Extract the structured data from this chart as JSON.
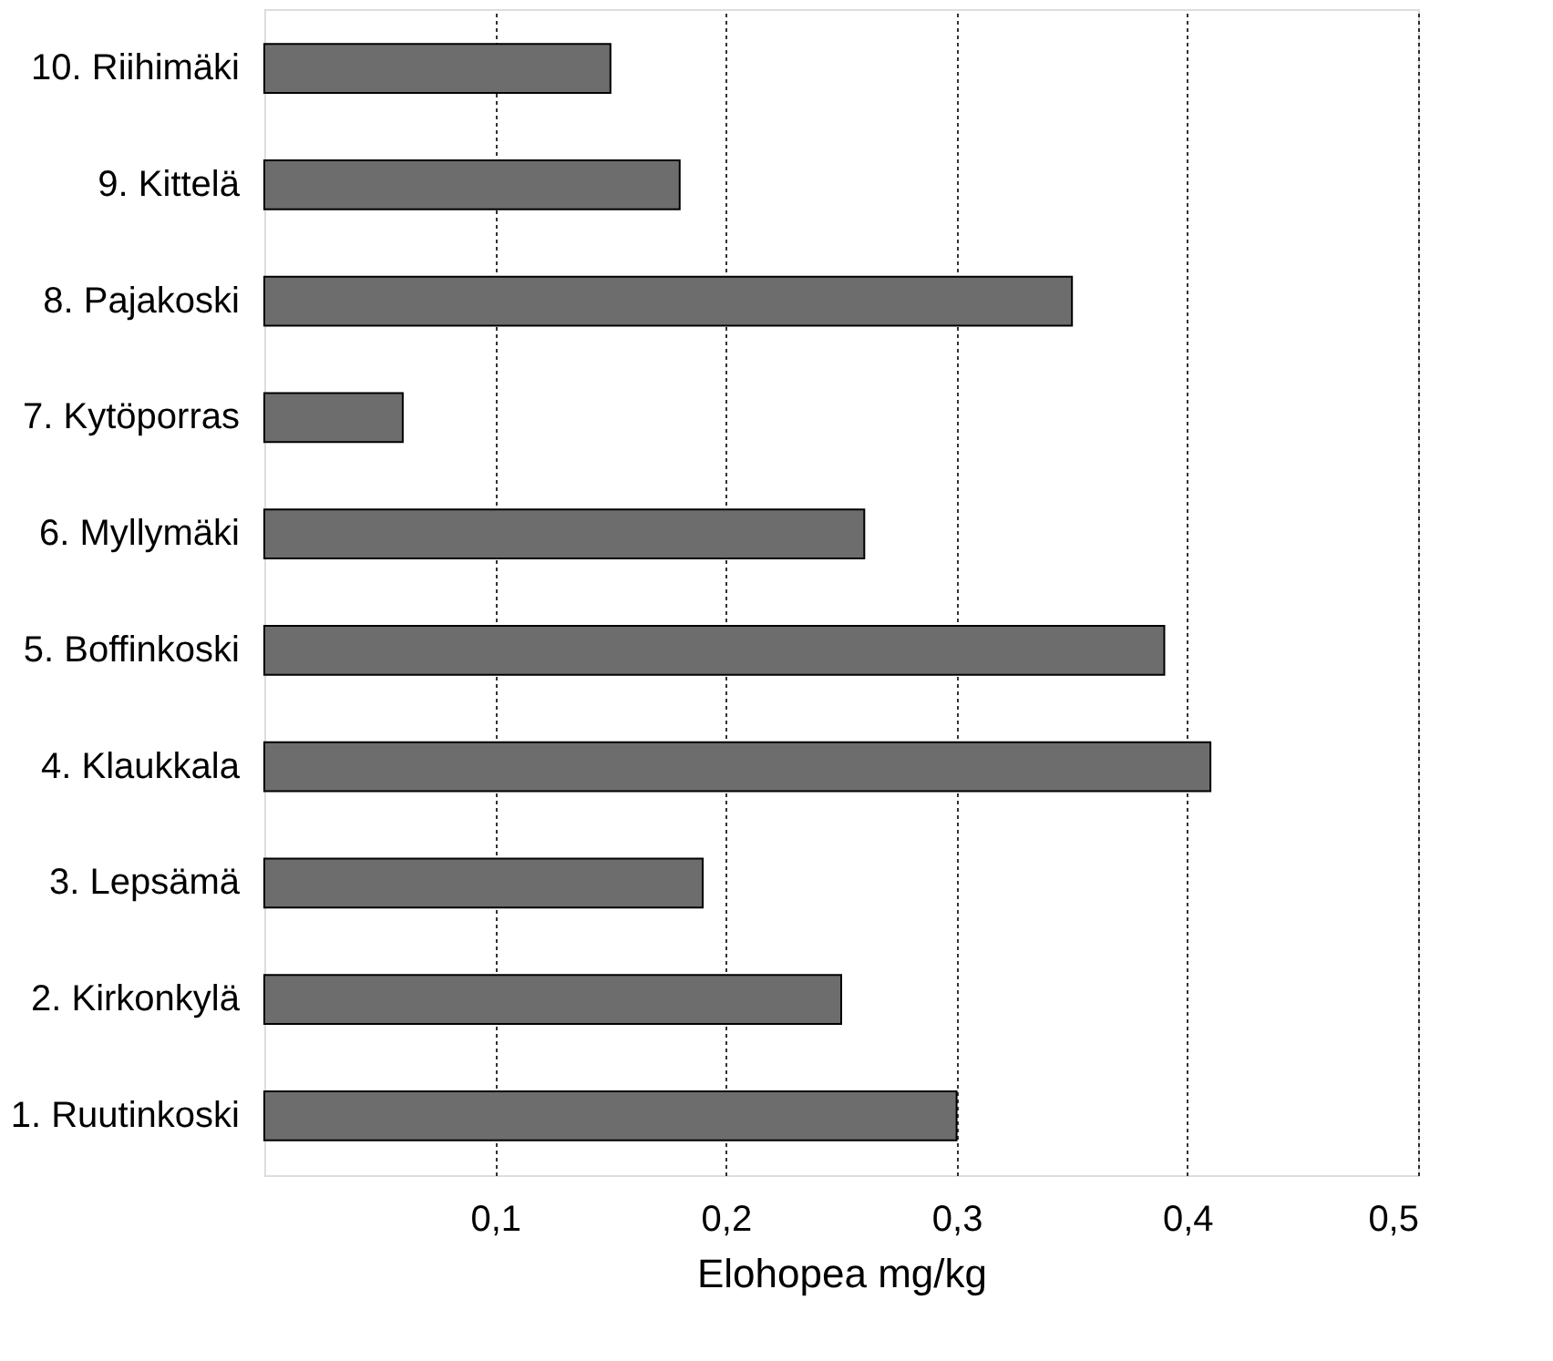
{
  "chart_data": {
    "type": "bar",
    "orientation": "horizontal",
    "xlabel": "Elohopea mg/kg",
    "categories": [
      "10. Riihimäki",
      "9. Kittelä",
      "8. Pajakoski",
      "7. Kytöporras",
      "6. Myllymäki",
      "5. Boffinkoski",
      "4. Klaukkala",
      "3. Lepsämä",
      "2. Kirkonkylä",
      "1. Ruutinkoski"
    ],
    "values": [
      0.15,
      0.18,
      0.35,
      0.06,
      0.26,
      0.39,
      0.41,
      0.19,
      0.25,
      0.3
    ],
    "color": "#6d6d6d",
    "xlim": [
      0,
      0.5
    ],
    "xticks": [
      {
        "value": 0.1,
        "label": "0,1"
      },
      {
        "value": 0.2,
        "label": "0,2"
      },
      {
        "value": 0.3,
        "label": "0,3"
      },
      {
        "value": 0.4,
        "label": "0,4"
      },
      {
        "value": 0.5,
        "label": "0,5"
      }
    ],
    "grid": "x",
    "line_style": "dotted"
  }
}
